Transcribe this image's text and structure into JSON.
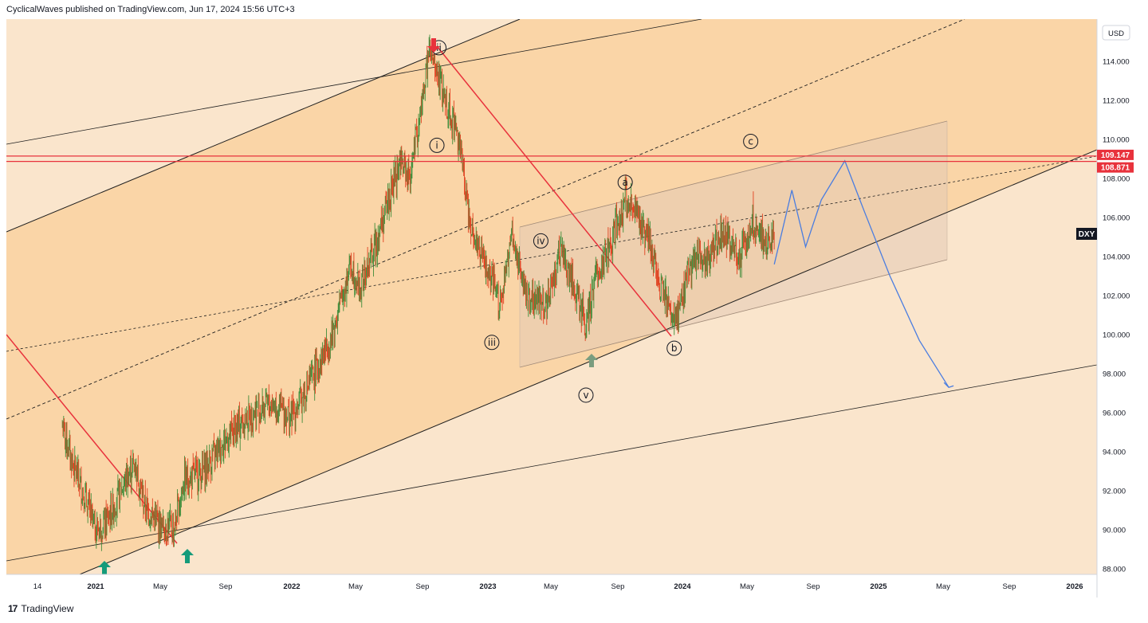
{
  "header": {
    "publisher_line": "CyclicalWaves published on TradingView.com, Jun 17, 2024 15:56 UTC+3"
  },
  "footer": {
    "logo_mark": "17",
    "brand": "TradingView"
  },
  "colors": {
    "background": "#fae5cc",
    "upper_channel_fill": "#f9d3a3",
    "range_box_fill": "#e3cbb5",
    "price_up": "#3f8c3a",
    "price_down": "#e0401f",
    "resistance": "#e8323c",
    "projection": "#4a7de0",
    "arrow_up": "#159b7a",
    "arrow_down": "#e8323c"
  },
  "chart_data": {
    "type": "line",
    "symbol": "DXY",
    "currency": "USD",
    "y_ticks": [
      "114.000",
      "112.000",
      "110.000",
      "108.000",
      "106.000",
      "104.000",
      "102.000",
      "100.000",
      "98.000",
      "96.000",
      "94.000",
      "92.000",
      "90.000",
      "88.000"
    ],
    "x_ticks": [
      "14",
      "2021",
      "May",
      "Sep",
      "2022",
      "May",
      "Sep",
      "2023",
      "May",
      "Sep",
      "2024",
      "May",
      "Sep",
      "2025",
      "May",
      "Sep",
      "2026"
    ],
    "ylim": [
      87.6,
      116.2
    ],
    "price_path": {
      "x": [
        2020.83,
        2020.88,
        2020.95,
        2021.0,
        2021.05,
        2021.15,
        2021.2,
        2021.25,
        2021.33,
        2021.4,
        2021.45,
        2021.55,
        2021.65,
        2021.8,
        2021.9,
        2022.0,
        2022.1,
        2022.2,
        2022.3,
        2022.35,
        2022.45,
        2022.55,
        2022.6,
        2022.65,
        2022.7,
        2022.75,
        2022.8,
        2022.85,
        2022.9,
        2022.95,
        2023.0,
        2023.07,
        2023.12,
        2023.2,
        2023.3,
        2023.37,
        2023.45,
        2023.5,
        2023.55,
        2023.62,
        2023.7,
        2023.75,
        2023.82,
        2023.88,
        2023.95,
        2024.0,
        2024.05,
        2024.12,
        2024.2,
        2024.28,
        2024.35,
        2024.42,
        2024.46
      ],
      "y": [
        95.3,
        93.5,
        91.5,
        90.0,
        90.3,
        92.5,
        93.4,
        91.2,
        90.2,
        90.1,
        92.5,
        93.0,
        94.5,
        96.0,
        96.5,
        95.8,
        97.7,
        99.8,
        103.6,
        102.3,
        105.4,
        108.8,
        108.1,
        110.8,
        114.5,
        113.0,
        111.5,
        110.2,
        106.3,
        104.5,
        103.1,
        101.5,
        105.2,
        102.0,
        101.6,
        104.3,
        102.1,
        100.3,
        103.0,
        104.5,
        107.0,
        106.2,
        104.9,
        102.6,
        100.4,
        102.3,
        104.0,
        103.9,
        105.3,
        104.0,
        105.9,
        104.3,
        105.3
      ]
    },
    "projection": {
      "x": [
        2024.46,
        2024.55,
        2024.62,
        2024.7,
        2024.82,
        2024.92,
        2025.05,
        2025.2,
        2025.35
      ],
      "y": [
        103.6,
        107.4,
        104.5,
        106.9,
        108.9,
        106.3,
        103.0,
        99.7,
        97.3
      ]
    },
    "horizontal_levels": [
      {
        "label": "109.147",
        "value": 109.147
      },
      {
        "label": "108.871",
        "value": 108.871
      }
    ],
    "wave_labels": [
      {
        "label": "ii",
        "x": 2022.75,
        "y": 114.7
      },
      {
        "label": "i",
        "x": 2022.74,
        "y": 109.7
      },
      {
        "label": "iii",
        "x": 2023.02,
        "y": 99.6
      },
      {
        "label": "iv",
        "x": 2023.27,
        "y": 104.8
      },
      {
        "label": "v",
        "x": 2023.5,
        "y": 96.9
      },
      {
        "label": "a",
        "x": 2023.7,
        "y": 107.8
      },
      {
        "label": "b",
        "x": 2023.95,
        "y": 99.3
      },
      {
        "label": "c",
        "x": 2024.34,
        "y": 109.9
      }
    ],
    "last_price_tag": "DXY",
    "grid": false,
    "legend": "none"
  }
}
